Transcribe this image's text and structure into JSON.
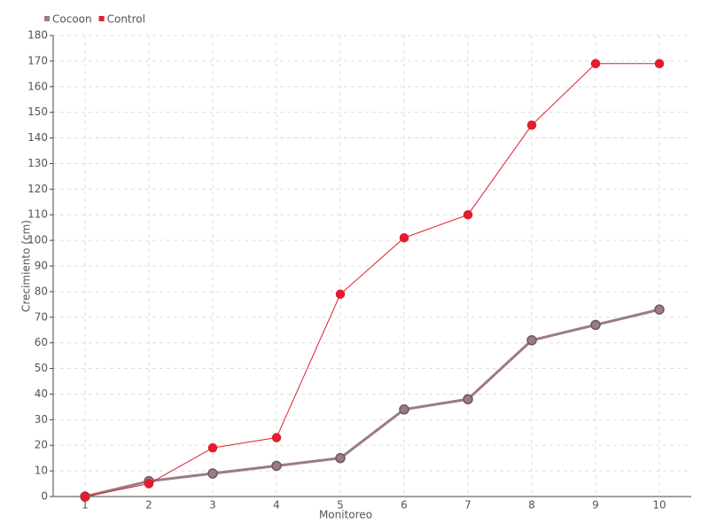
{
  "chart_data": {
    "type": "line",
    "x_label": "Monitoreo",
    "y_label": "Crecimiento (cm)",
    "categories": [
      "1",
      "2",
      "3",
      "4",
      "5",
      "6",
      "7",
      "8",
      "9",
      "10"
    ],
    "series": [
      {
        "name": "Cocoon",
        "color": "#9b7b84",
        "values": [
          0,
          6,
          9,
          12,
          15,
          34,
          38,
          61,
          67,
          73
        ]
      },
      {
        "name": "Control",
        "color": "#e01e2e",
        "values": [
          0,
          5,
          19,
          23,
          79,
          101,
          110,
          145,
          169,
          169
        ]
      }
    ],
    "ylim": [
      0,
      180
    ],
    "yticks": [
      0,
      10,
      20,
      30,
      40,
      50,
      60,
      70,
      80,
      90,
      100,
      110,
      120,
      130,
      140,
      150,
      160,
      170,
      180
    ],
    "grid": true,
    "legend": "top-left"
  }
}
